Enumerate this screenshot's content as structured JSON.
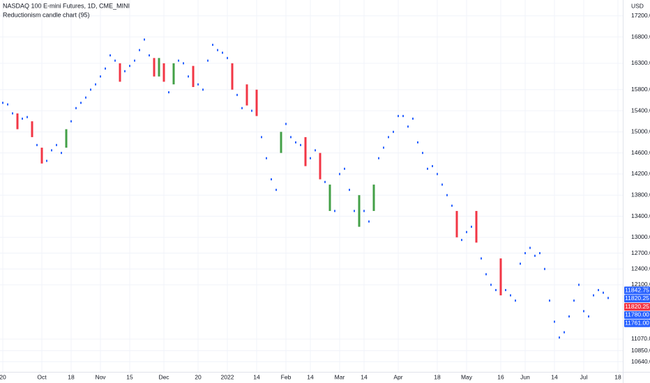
{
  "chart_data": {
    "type": "candle",
    "title": "NASDAQ 100 E-mini Futures, 1D, CME_MINI",
    "subtitle": "Reductionism candle chart (95)",
    "currency": "USD",
    "dot_color": "#2962ff",
    "up_color": "#43a047",
    "down_color": "#f23645",
    "grid": true,
    "categories": [
      "20",
      null,
      null,
      null,
      null,
      null,
      null,
      null,
      "Oct",
      null,
      null,
      null,
      null,
      null,
      "18",
      null,
      null,
      null,
      null,
      null,
      "Nov",
      null,
      null,
      null,
      null,
      null,
      "15",
      null,
      null,
      null,
      null,
      null,
      null,
      "Dec",
      null,
      null,
      null,
      null,
      null,
      null,
      "20",
      null,
      null,
      null,
      null,
      null,
      "2022",
      null,
      null,
      null,
      null,
      null,
      "14",
      null,
      null,
      null,
      null,
      null,
      "Feb",
      null,
      null,
      null,
      null,
      "14",
      null,
      null,
      null,
      null,
      null,
      "Mar",
      null,
      null,
      null,
      null,
      "14",
      null,
      null,
      null,
      null,
      null,
      null,
      "Apr",
      null,
      null,
      null,
      null,
      null,
      null,
      null,
      "18",
      null,
      null,
      null,
      null,
      null,
      "May",
      null,
      null,
      null,
      null,
      null,
      null,
      "16",
      null,
      null,
      null,
      null,
      "Jun",
      null,
      null,
      null,
      null,
      null,
      "14",
      null,
      null,
      null,
      null,
      null,
      "Jul",
      null,
      null,
      null,
      null,
      null,
      null,
      "18"
    ],
    "values": [
      15550,
      15520,
      15350,
      15050,
      15250,
      15280,
      14900,
      14750,
      14400,
      14450,
      14650,
      14750,
      14600,
      15050,
      15200,
      15450,
      15550,
      15650,
      15800,
      15900,
      16050,
      16200,
      16450,
      16350,
      15950,
      16150,
      16250,
      16350,
      16550,
      16750,
      16450,
      16050,
      16400,
      15950,
      15750,
      16300,
      16350,
      16300,
      16050,
      15850,
      15900,
      15800,
      16350,
      16650,
      16550,
      16500,
      16400,
      15800,
      15700,
      15450,
      15500,
      15400,
      15300,
      14900,
      14500,
      14100,
      13900,
      15000,
      15150,
      14900,
      14800,
      14750,
      14350,
      14500,
      14650,
      14100,
      14050,
      14000,
      13500,
      14200,
      14300,
      13900,
      13500,
      13800,
      13500,
      13300,
      14000,
      14500,
      14700,
      14900,
      15000,
      15300,
      15300,
      15100,
      15250,
      14800,
      14600,
      14300,
      14350,
      14200,
      14000,
      13800,
      13600,
      13000,
      12950,
      13100,
      13200,
      12900,
      12600,
      12300,
      12100,
      12000,
      11900,
      12000,
      11900,
      11800,
      12500,
      12700,
      12800,
      12650,
      12700,
      12400,
      11800,
      11400,
      11100,
      11200,
      11500,
      11800,
      12100,
      11600,
      11500,
      11900,
      12000,
      11950,
      11850,
      null,
      null
    ],
    "open": [
      null,
      null,
      null,
      15350,
      null,
      null,
      15200,
      null,
      14700,
      null,
      null,
      null,
      null,
      14700,
      null,
      null,
      null,
      null,
      null,
      null,
      null,
      null,
      null,
      null,
      16300,
      null,
      null,
      null,
      null,
      null,
      null,
      16400,
      16050,
      16300,
      null,
      15900,
      null,
      null,
      null,
      16250,
      null,
      null,
      null,
      null,
      null,
      null,
      null,
      16300,
      null,
      null,
      15900,
      null,
      15800,
      null,
      null,
      null,
      null,
      14600,
      null,
      null,
      null,
      null,
      14900,
      null,
      null,
      14600,
      null,
      13500,
      null,
      null,
      null,
      null,
      null,
      13200,
      null,
      null,
      13500,
      null,
      null,
      null,
      null,
      null,
      null,
      null,
      null,
      null,
      null,
      null,
      null,
      null,
      null,
      null,
      null,
      13500,
      null,
      null,
      null,
      13500,
      null,
      null,
      null,
      null,
      12600,
      null,
      null,
      null,
      null,
      null,
      null,
      null,
      null,
      null,
      null,
      null,
      null,
      null,
      null,
      null,
      null,
      null,
      null,
      null,
      null,
      null,
      null,
      null,
      null
    ],
    "ylim": [
      10370,
      17500
    ],
    "yticks": [
      {
        "value": 17200,
        "label": "17200.00"
      },
      {
        "value": 16800,
        "label": "16800.00"
      },
      {
        "value": 16300,
        "label": "16300.00"
      },
      {
        "value": 15800,
        "label": "15800.00"
      },
      {
        "value": 15400,
        "label": "15400.00"
      },
      {
        "value": 15000,
        "label": "15000.00"
      },
      {
        "value": 14600,
        "label": "14600.00"
      },
      {
        "value": 14200,
        "label": "14200.00"
      },
      {
        "value": 13800,
        "label": "13800.00"
      },
      {
        "value": 13400,
        "label": "13400.00"
      },
      {
        "value": 13000,
        "label": "13000.00"
      },
      {
        "value": 12700,
        "label": "12700.00"
      },
      {
        "value": 12400,
        "label": "12400.00"
      },
      {
        "value": 12100,
        "label": "12100.00"
      },
      {
        "value": 11070,
        "label": "11070.00"
      },
      {
        "value": 10850,
        "label": "10850.00"
      },
      {
        "value": 10640,
        "label": "10640.00"
      }
    ],
    "price_tags": [
      {
        "value": 11842.75,
        "label": "11842.75",
        "color": "#2962ff"
      },
      {
        "value": 11820.25,
        "label": "11820.25",
        "color": "#2962ff"
      },
      {
        "value": 11820.25,
        "label": "11820.25",
        "color": "#f23645"
      },
      {
        "value": 11780,
        "label": "11780.00",
        "color": "#2962ff"
      },
      {
        "value": 11761,
        "label": "11761.00",
        "color": "#2962ff"
      }
    ]
  }
}
